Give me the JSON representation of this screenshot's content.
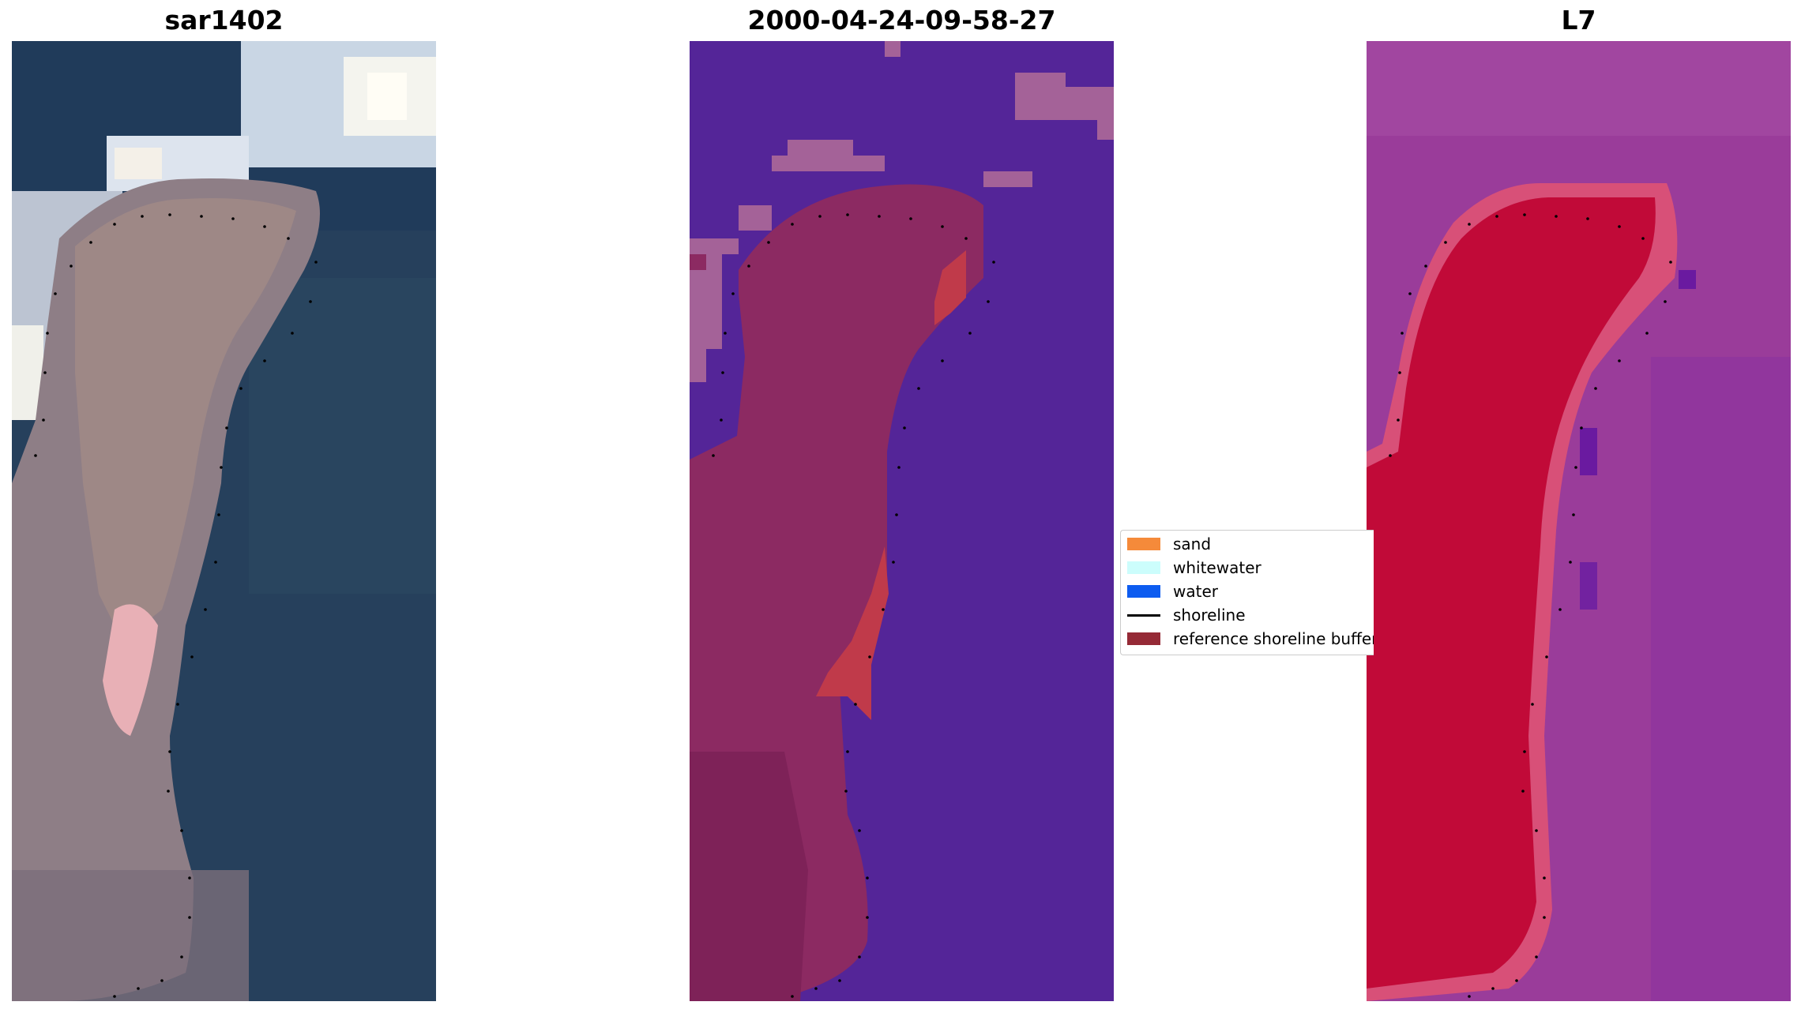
{
  "panels": [
    {
      "title": "sar1402"
    },
    {
      "title": "2000-04-24-09-58-27"
    },
    {
      "title": "L7"
    }
  ],
  "legend": {
    "items": [
      {
        "label": "sand",
        "color": "#f58a3a",
        "kind": "patch"
      },
      {
        "label": "whitewater",
        "color": "#ccfdfc",
        "kind": "patch"
      },
      {
        "label": "water",
        "color": "#0d5cf0",
        "kind": "patch"
      },
      {
        "label": "shoreline",
        "color": "#000000",
        "kind": "line"
      },
      {
        "label": "reference shoreline buffer",
        "color": "#952a36",
        "kind": "patch"
      }
    ]
  },
  "colors": {
    "rgb_water": "#26405c",
    "rgb_sand": "#9c8582",
    "rgb_whitewater": "#eef2f6",
    "class_background": "#542598",
    "class_whitewater": "#a46298",
    "class_sand_buffer": "#8c2a62",
    "class_sand_bright": "#c03a4a",
    "index_background": "#9a3c9a",
    "index_land": "#c10a38",
    "index_dark": "#6a1aa0"
  }
}
